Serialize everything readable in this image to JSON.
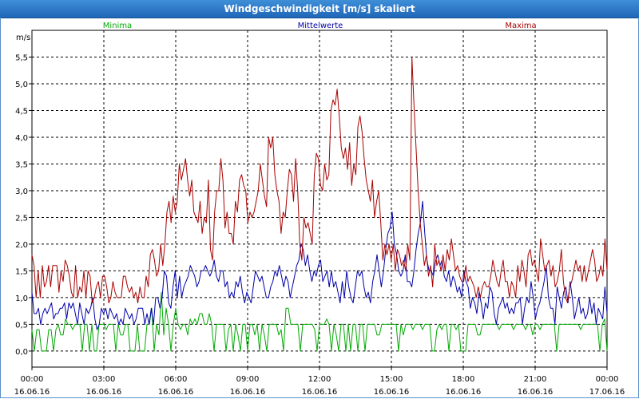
{
  "window": {
    "title": "Windgeschwindigkeit [m/s] skaliert"
  },
  "chart_data": {
    "type": "line",
    "title": "Windgeschwindigkeit [m/s] skaliert",
    "ylabel": "m/s",
    "xlabel": "",
    "ylim": [
      -0.3,
      6.0
    ],
    "xlim": [
      0,
      24
    ],
    "grid": true,
    "legend_placement": "top",
    "y_ticks": [
      "0,0",
      "0,5",
      "1,0",
      "1,5",
      "2,0",
      "2,5",
      "3,0",
      "3,5",
      "4,0",
      "4,5",
      "5,0",
      "5,5"
    ],
    "y_tick_values": [
      0,
      0.5,
      1,
      1.5,
      2,
      2.5,
      3,
      3.5,
      4,
      4.5,
      5,
      5.5
    ],
    "x_ticks": [
      {
        "time": "00:00",
        "date": "16.06.16"
      },
      {
        "time": "03:00",
        "date": "16.06.16"
      },
      {
        "time": "06:00",
        "date": "16.06.16"
      },
      {
        "time": "09:00",
        "date": "16.06.16"
      },
      {
        "time": "12:00",
        "date": "16.06.16"
      },
      {
        "time": "15:00",
        "date": "16.06.16"
      },
      {
        "time": "18:00",
        "date": "16.06.16"
      },
      {
        "time": "21:00",
        "date": "16.06.16"
      },
      {
        "time": "00:00",
        "date": "17.06.16"
      }
    ],
    "x_tick_hours": [
      0,
      3,
      6,
      9,
      12,
      15,
      18,
      21,
      24
    ],
    "series": [
      {
        "name": "Minima",
        "color": "#00aa00",
        "values": [
          0.4,
          0.0,
          0.4,
          0.4,
          0.0,
          0.0,
          0.0,
          0.4,
          0.4,
          0.0,
          0.4,
          0.5,
          0.3,
          0.3,
          0.6,
          0.5,
          0.5,
          0.4,
          0.5,
          0.5,
          0.5,
          0.0,
          0.5,
          0.5,
          0.0,
          0.5,
          0.0,
          0.0,
          0.5,
          0.5,
          0.5,
          0.4,
          0.5,
          0.5,
          0.5,
          0.0,
          0.5,
          0.3,
          0.3,
          0.5,
          0.5,
          0.0,
          0.0,
          0.0,
          0.5,
          0.0,
          0.0,
          0.0,
          0.5,
          0.5,
          0.8,
          0.0,
          0.5,
          0.3,
          1.1,
          0.3,
          0.8,
          0.5,
          0.0,
          0.5,
          0.8,
          0.5,
          0.4,
          0.5,
          0.5,
          0.3,
          0.6,
          0.5,
          0.6,
          0.5,
          0.7,
          0.7,
          0.5,
          0.5,
          0.7,
          0.5,
          0.0,
          0.5,
          0.5,
          0.5,
          0.5,
          0.0,
          0.4,
          0.5,
          0.0,
          0.5,
          0.3,
          0.0,
          0.5,
          0.5,
          0.0,
          0.5,
          0.5,
          0.3,
          0.5,
          0.0,
          0.5,
          0.3,
          0.0,
          0.5,
          0.5,
          0.5,
          0.5,
          0.3,
          0.4,
          0.0,
          0.8,
          0.8,
          0.5,
          0.5,
          0.5,
          0.5,
          0.0,
          0.5,
          0.5,
          0.5,
          0.5,
          0.5,
          0.4,
          0.0,
          0.5,
          0.5,
          0.5,
          0.6,
          0.5,
          0.0,
          0.5,
          0.3,
          0.0,
          0.5,
          0.5,
          0.0,
          0.5,
          0.0,
          0.5,
          0.5,
          0.0,
          0.5,
          0.5,
          0.0,
          0.5,
          0.5,
          0.5,
          0.5,
          0.3,
          0.3,
          0.5,
          0.5,
          0.5,
          0.5,
          0.5,
          0.5,
          0.5,
          0.0,
          0.5,
          0.3,
          0.5,
          0.5,
          0.5,
          0.4,
          0.5,
          0.5,
          0.5,
          0.4,
          0.5,
          0.5,
          0.5,
          0.0,
          0.0,
          0.4,
          0.5,
          0.4,
          0.5,
          0.5,
          0.0,
          0.5,
          0.5,
          0.4,
          0.5,
          0.0,
          0.0,
          0.0,
          0.5,
          0.5,
          0.5,
          0.5,
          0.3,
          0.3,
          0.5,
          0.5,
          0.5,
          0.5,
          0.5,
          0.5,
          0.5,
          0.4,
          0.5,
          0.5,
          0.5,
          0.5,
          0.5,
          0.4,
          0.5,
          0.5,
          0.5,
          0.5,
          0.4,
          0.5,
          0.5,
          0.3,
          0.5,
          0.5,
          0.4,
          0.5,
          0.5,
          0.5,
          0.5,
          0.5,
          0.5,
          0.0,
          0.5,
          0.5,
          0.5,
          0.5,
          0.5,
          0.5,
          0.5,
          0.5,
          0.5,
          0.4,
          0.5,
          0.5,
          0.5,
          0.5,
          0.5,
          0.5,
          0.5,
          0.0,
          0.5,
          0.6,
          0.0
        ]
      },
      {
        "name": "Mittelwerte",
        "color": "#0000aa",
        "values": [
          1.1,
          0.7,
          0.7,
          0.8,
          0.5,
          0.7,
          0.8,
          0.7,
          0.8,
          0.9,
          0.6,
          0.7,
          0.7,
          0.8,
          0.8,
          0.9,
          0.6,
          0.9,
          0.8,
          0.9,
          0.7,
          0.5,
          0.9,
          0.7,
          0.5,
          0.8,
          0.7,
          0.8,
          1.0,
          0.6,
          0.4,
          0.5,
          0.8,
          0.7,
          0.8,
          0.6,
          0.8,
          0.7,
          0.6,
          0.7,
          0.5,
          0.6,
          0.5,
          0.8,
          0.7,
          0.6,
          0.7,
          0.5,
          0.6,
          0.8,
          0.8,
          0.8,
          0.5,
          0.7,
          0.5,
          0.8,
          0.5,
          1.0,
          1.0,
          0.8,
          1.0,
          1.5,
          1.4,
          0.9,
          0.8,
          1.2,
          1.5,
          1.0,
          1.4,
          1.0,
          1.2,
          1.3,
          1.4,
          1.6,
          1.5,
          1.4,
          1.2,
          1.3,
          1.5,
          1.5,
          1.6,
          1.5,
          1.4,
          1.5,
          1.7,
          1.4,
          1.3,
          1.5,
          1.5,
          1.2,
          1.3,
          1.0,
          1.1,
          1.0,
          1.3,
          1.2,
          1.4,
          1.1,
          0.9,
          1.1,
          1.0,
          0.9,
          1.2,
          1.5,
          1.4,
          1.3,
          1.4,
          1.2,
          1.0,
          1.0,
          1.2,
          1.3,
          1.5,
          1.4,
          1.6,
          1.4,
          1.2,
          1.4,
          1.3,
          1.0,
          1.2,
          1.4,
          1.6,
          1.7,
          2.0,
          1.9,
          1.6,
          1.8,
          1.5,
          1.3,
          1.5,
          1.4,
          1.6,
          1.7,
          1.3,
          1.4,
          1.5,
          1.2,
          1.5,
          1.2,
          1.3,
          1.1,
          0.9,
          1.3,
          1.0,
          1.5,
          1.2,
          1.0,
          0.9,
          1.2,
          1.5,
          1.4,
          1.5,
          1.2,
          1.0,
          1.1,
          0.9,
          1.3,
          1.5,
          1.8,
          1.5,
          1.2,
          1.5,
          1.9,
          2.2,
          2.3,
          2.6,
          2.0,
          1.8,
          1.5,
          1.4,
          1.5,
          1.8,
          1.3,
          1.3,
          1.2,
          1.5,
          1.9,
          2.2,
          2.4,
          2.8,
          2.2,
          1.7,
          1.5,
          1.5,
          1.4,
          1.7,
          1.8,
          1.6,
          1.7,
          1.4,
          1.3,
          1.5,
          1.2,
          1.4,
          1.3,
          1.1,
          1.2,
          1.0,
          1.5,
          1.3,
          1.2,
          0.8,
          1.0,
          0.9,
          0.7,
          1.1,
          0.9,
          0.6,
          0.9,
          0.8,
          1.2,
          1.1,
          0.7,
          0.5,
          0.8,
          0.9,
          1.0,
          0.8,
          0.9,
          0.7,
          0.8,
          0.7,
          0.9,
          0.9,
          1.0,
          0.5,
          0.8,
          1.0,
          0.9,
          1.3,
          1.0,
          0.6,
          0.8,
          0.9,
          1.1,
          1.3,
          1.6,
          1.0,
          0.8,
          0.8,
          0.5,
          1.2,
          1.0,
          0.8,
          1.1,
          1.2,
          0.9,
          1.3,
          1.0,
          0.6,
          0.8,
          1.0,
          0.7,
          0.8,
          0.6,
          0.7,
          1.0,
          0.7,
          0.9,
          0.5,
          0.8,
          0.7,
          0.6,
          1.2,
          0.7
        ]
      },
      {
        "name": "Maxima",
        "color": "#aa0000",
        "values": [
          1.8,
          1.6,
          1.0,
          1.5,
          1.0,
          1.6,
          1.2,
          1.3,
          1.6,
          1.2,
          1.6,
          1.6,
          1.6,
          1.1,
          1.5,
          1.3,
          1.7,
          1.6,
          1.4,
          1.1,
          1.0,
          1.6,
          1.0,
          1.2,
          1.1,
          1.5,
          1.0,
          1.5,
          1.4,
          0.9,
          1.0,
          1.2,
          1.3,
          1.0,
          1.4,
          1.4,
          1.2,
          0.9,
          1.0,
          1.3,
          1.1,
          1.0,
          1.0,
          1.0,
          1.4,
          1.4,
          1.2,
          1.1,
          1.2,
          1.0,
          1.1,
          0.9,
          1.2,
          1.0,
          1.0,
          1.4,
          1.2,
          1.8,
          1.9,
          1.7,
          1.4,
          1.5,
          2.0,
          1.6,
          2.0,
          2.6,
          2.8,
          2.4,
          2.9,
          2.6,
          2.8,
          3.5,
          3.2,
          3.4,
          3.6,
          3.2,
          2.9,
          3.2,
          2.6,
          2.5,
          2.4,
          2.8,
          2.2,
          2.5,
          2.4,
          3.2,
          1.9,
          1.7,
          2.6,
          3.0,
          3.0,
          3.6,
          3.2,
          2.3,
          2.6,
          2.2,
          2.2,
          2.0,
          2.8,
          2.6,
          3.2,
          3.3,
          3.1,
          3.0,
          2.4,
          2.6,
          2.5,
          2.6,
          2.8,
          3.0,
          3.5,
          3.2,
          2.9,
          2.7,
          4.0,
          3.8,
          4.0,
          3.3,
          3.0,
          2.8,
          2.2,
          2.6,
          2.5,
          3.0,
          3.4,
          3.3,
          2.8,
          3.6,
          3.0,
          2.0,
          1.7,
          2.5,
          2.3,
          2.4,
          2.2,
          2.0,
          3.3,
          3.7,
          3.6,
          3.1,
          3.0,
          3.5,
          3.2,
          3.3,
          4.5,
          4.7,
          4.6,
          4.9,
          4.4,
          3.8,
          3.6,
          3.8,
          3.4,
          3.9,
          3.1,
          3.5,
          3.3,
          4.2,
          4.4,
          4.1,
          3.6,
          3.2,
          3.0,
          2.8,
          3.2,
          2.5,
          2.8,
          3.0,
          2.4,
          1.7,
          2.0,
          1.8,
          2.0,
          1.7,
          2.0,
          1.5,
          1.9,
          1.8,
          1.6,
          1.7,
          1.5,
          2.0,
          1.7,
          5.5,
          4.6,
          3.8,
          3.0,
          2.4,
          2.0,
          1.6,
          1.8,
          1.4,
          1.6,
          1.2,
          2.0,
          1.6,
          1.7,
          1.5,
          1.8,
          1.5,
          1.9,
          1.7,
          2.1,
          1.8,
          1.5,
          1.6,
          1.4,
          1.3,
          1.3,
          1.6,
          1.3,
          1.4,
          1.3,
          1.2,
          1.0,
          1.2,
          1.0,
          1.2,
          1.3,
          1.2,
          1.2,
          1.4,
          1.7,
          1.5,
          1.3,
          1.2,
          1.5,
          1.7,
          1.3,
          1.3,
          1.0,
          1.3,
          1.2,
          1.0,
          1.6,
          1.3,
          1.7,
          1.5,
          1.2,
          1.8,
          1.9,
          1.6,
          1.7,
          1.5,
          1.3,
          2.1,
          1.8,
          1.5,
          1.6,
          1.7,
          1.4,
          1.6,
          1.2,
          1.3,
          1.5,
          1.9,
          1.3,
          1.0,
          0.9,
          1.2,
          1.3,
          1.5,
          1.7,
          1.5,
          1.6,
          1.3,
          1.6,
          1.3,
          1.5,
          1.7,
          1.9,
          1.7,
          1.3,
          1.4,
          1.6,
          1.4,
          2.1,
          1.5
        ]
      }
    ]
  }
}
